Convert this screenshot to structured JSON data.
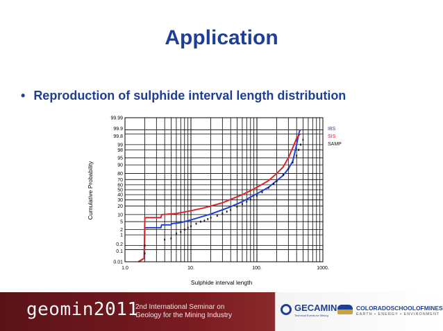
{
  "slide": {
    "title": "Application",
    "bullet": "Reproduction of sulphide interval length distribution"
  },
  "footer": {
    "brand_left": "geomin",
    "brand_year": "2011",
    "seminar_line1": "2nd International Seminar on",
    "seminar_line2": "Geology for the Mining Industry",
    "gecamin_name": "GECAMIN",
    "gecamin_tag": "Technical Events for Mining",
    "csm_name": "COLORADOSCHOOLOFMINES.",
    "csm_tag": "EARTH • ENERGY • ENVIRONMENT"
  },
  "chart_data": {
    "type": "line",
    "title": "",
    "xlabel": "Sulphide interval  length",
    "ylabel": "Cumulative Probability",
    "x_scale": "log",
    "y_scale": "probability",
    "xlim": [
      1,
      1000
    ],
    "ylim": [
      0.01,
      99.99
    ],
    "x_tick_labels": [
      {
        "value": 1,
        "label": "1.0"
      },
      {
        "value": 10,
        "label": "10."
      },
      {
        "value": 100,
        "label": "100."
      },
      {
        "value": 1000,
        "label": "1000."
      }
    ],
    "y_tick_labels": [
      {
        "value": 99.99,
        "label": "99.99"
      },
      {
        "value": 99.9,
        "label": "99.9"
      },
      {
        "value": 99.8,
        "label": "99.8"
      },
      {
        "value": 99,
        "label": "99"
      },
      {
        "value": 98,
        "label": "98"
      },
      {
        "value": 95,
        "label": "95"
      },
      {
        "value": 90,
        "label": "90"
      },
      {
        "value": 80,
        "label": "80"
      },
      {
        "value": 70,
        "label": "70"
      },
      {
        "value": 60,
        "label": "60"
      },
      {
        "value": 50,
        "label": "50"
      },
      {
        "value": 40,
        "label": "40"
      },
      {
        "value": 30,
        "label": "30"
      },
      {
        "value": 20,
        "label": "20"
      },
      {
        "value": 10,
        "label": "10"
      },
      {
        "value": 5,
        "label": "5"
      },
      {
        "value": 2,
        "label": "2"
      },
      {
        "value": 1,
        "label": "1"
      },
      {
        "value": 0.2,
        "label": "0.2"
      },
      {
        "value": 0.1,
        "label": "0.1"
      },
      {
        "value": 0.01,
        "label": "0.01"
      }
    ],
    "grid": true,
    "legend_position": "top-right",
    "series": [
      {
        "name": "IBS",
        "color": "#1f3fd9",
        "style": "line",
        "points": [
          [
            1.6,
            0.01
          ],
          [
            1.95,
            0.02
          ],
          [
            2.0,
            2.5
          ],
          [
            3.5,
            2.5
          ],
          [
            3.6,
            3.5
          ],
          [
            5,
            3.5
          ],
          [
            5.1,
            4.0
          ],
          [
            7,
            4.5
          ],
          [
            10,
            6
          ],
          [
            14,
            8
          ],
          [
            20,
            10.5
          ],
          [
            30,
            15
          ],
          [
            40,
            19
          ],
          [
            60,
            27
          ],
          [
            80,
            35
          ],
          [
            100,
            42
          ],
          [
            150,
            55
          ],
          [
            200,
            68
          ],
          [
            250,
            77
          ],
          [
            300,
            86
          ],
          [
            350,
            93
          ],
          [
            400,
            99
          ],
          [
            430,
            99.8
          ],
          [
            450,
            99.9
          ]
        ]
      },
      {
        "name": "SIS",
        "color": "#d9252b",
        "style": "line",
        "points": [
          [
            1.6,
            0.01
          ],
          [
            1.95,
            0.02
          ],
          [
            2.0,
            7.5
          ],
          [
            3.5,
            7.5
          ],
          [
            3.6,
            10
          ],
          [
            6,
            11
          ],
          [
            10,
            14
          ],
          [
            15,
            17
          ],
          [
            20,
            20
          ],
          [
            30,
            25
          ],
          [
            40,
            31
          ],
          [
            60,
            40
          ],
          [
            80,
            48
          ],
          [
            100,
            55
          ],
          [
            150,
            68
          ],
          [
            200,
            80
          ],
          [
            250,
            88
          ],
          [
            300,
            95
          ],
          [
            350,
            98.5
          ],
          [
            400,
            99.6
          ],
          [
            450,
            99.8
          ]
        ]
      },
      {
        "name": "SAMP",
        "color": "#111111",
        "style": "points",
        "points": [
          [
            2.0,
            0.05
          ],
          [
            2.0,
            0.2
          ],
          [
            4,
            0.5
          ],
          [
            5,
            0.6
          ],
          [
            6,
            1.2
          ],
          [
            7,
            1.5
          ],
          [
            8,
            2
          ],
          [
            9,
            2.5
          ],
          [
            10,
            3
          ],
          [
            12,
            4
          ],
          [
            14,
            5
          ],
          [
            16,
            5.5
          ],
          [
            18,
            6.5
          ],
          [
            20,
            7.5
          ],
          [
            25,
            9
          ],
          [
            30,
            11
          ],
          [
            35,
            13
          ],
          [
            40,
            15
          ],
          [
            50,
            19
          ],
          [
            60,
            23
          ],
          [
            70,
            27
          ],
          [
            80,
            31
          ],
          [
            100,
            38
          ],
          [
            120,
            45
          ],
          [
            150,
            54
          ],
          [
            180,
            62
          ],
          [
            200,
            67
          ],
          [
            250,
            78
          ],
          [
            300,
            86
          ],
          [
            350,
            92
          ],
          [
            400,
            96
          ],
          [
            430,
            98
          ],
          [
            460,
            99
          ],
          [
            500,
            99.5
          ]
        ]
      }
    ]
  }
}
